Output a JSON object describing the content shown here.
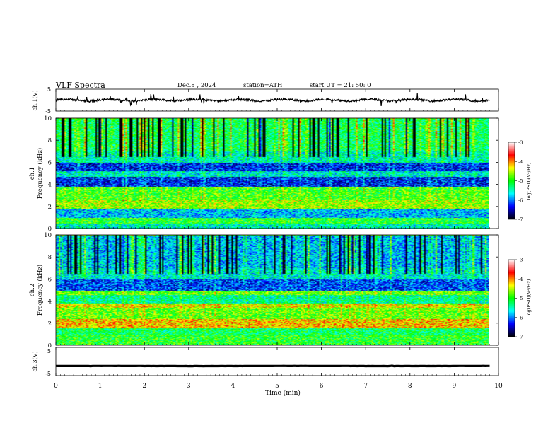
{
  "header": {
    "title": "VLF Spectra",
    "date": "Dec.8 , 2024",
    "station": "station=ATH",
    "start": "start UT = 21: 50: 0"
  },
  "chart_data": [
    {
      "type": "line",
      "name": "ch1-waveform",
      "ylabel": "ch.1(V)",
      "ylim": [
        -5,
        5
      ],
      "y_ticks": [
        "5",
        "-5"
      ],
      "baseline": 0,
      "color": "#000000"
    },
    {
      "type": "heatmap",
      "name": "ch1-spectrogram",
      "ylabel": "ch.1\nFrequency (kHz)",
      "ylabel_lines": [
        "ch.1",
        "Frequency (kHz)"
      ],
      "ylim": [
        0,
        10
      ],
      "y_ticks": [
        "0",
        "2",
        "4",
        "6",
        "8",
        "10"
      ],
      "bands": [
        {
          "from": 0.0,
          "to": 0.5,
          "level": -5.5,
          "note": "black/mixed"
        },
        {
          "from": 0.5,
          "to": 1.0,
          "level": -5.0
        },
        {
          "from": 1.0,
          "to": 1.8,
          "level": -5.8
        },
        {
          "from": 1.8,
          "to": 2.6,
          "level": -4.6
        },
        {
          "from": 2.6,
          "to": 3.8,
          "level": -4.9
        },
        {
          "from": 3.8,
          "to": 4.7,
          "level": -6.3
        },
        {
          "from": 4.7,
          "to": 5.2,
          "level": -5.6
        },
        {
          "from": 5.2,
          "to": 6.0,
          "level": -6.3
        },
        {
          "from": 6.0,
          "to": 7.0,
          "level": -5.5
        },
        {
          "from": 7.0,
          "to": 10.0,
          "level": -5.2
        }
      ],
      "colorbar": {
        "label": "log(PSD)(V²/Hz)",
        "range": [
          -7,
          -3
        ],
        "ticks": [
          "-3",
          "-4",
          "-5",
          "-6",
          "-7"
        ]
      }
    },
    {
      "type": "heatmap",
      "name": "ch2-spectrogram",
      "ylabel": "ch.2\nFrequency (kHz)",
      "ylabel_lines": [
        "ch.2",
        "Frequency (kHz)"
      ],
      "ylim": [
        0,
        10
      ],
      "y_ticks": [
        "0",
        "2",
        "4",
        "6",
        "8",
        "10"
      ],
      "bands": [
        {
          "from": 0.0,
          "to": 1.0,
          "level": -5.0
        },
        {
          "from": 1.0,
          "to": 1.6,
          "level": -5.2
        },
        {
          "from": 1.6,
          "to": 2.4,
          "level": -4.2
        },
        {
          "from": 2.4,
          "to": 3.4,
          "level": -4.8
        },
        {
          "from": 3.4,
          "to": 3.8,
          "level": -4.4
        },
        {
          "from": 3.8,
          "to": 4.6,
          "level": -5.4
        },
        {
          "from": 4.6,
          "to": 5.0,
          "level": -4.8
        },
        {
          "from": 5.0,
          "to": 6.0,
          "level": -6.2
        },
        {
          "from": 6.0,
          "to": 7.0,
          "level": -5.6
        },
        {
          "from": 7.0,
          "to": 10.0,
          "level": -5.8
        }
      ],
      "colorbar": {
        "label": "log(PSD)(V²/Hz)",
        "range": [
          -7,
          -3
        ],
        "ticks": [
          "-3",
          "-4",
          "-5",
          "-6",
          "-7"
        ]
      }
    },
    {
      "type": "line",
      "name": "ch3-waveform",
      "ylabel": "ch.3(V)",
      "ylim": [
        -5,
        5
      ],
      "y_ticks": [
        "5",
        "-5"
      ],
      "baseline": -1.6,
      "color": "#000000"
    }
  ],
  "x_axis": {
    "label": "Time (min)",
    "range": [
      0,
      10
    ],
    "data_end": 9.8,
    "ticks": [
      "0",
      "1",
      "2",
      "3",
      "4",
      "5",
      "6",
      "7",
      "8",
      "9",
      "10"
    ]
  },
  "colorscale": [
    "#000000",
    "#0000ff",
    "#00ffff",
    "#00ff00",
    "#ffff00",
    "#ff0000",
    "#ffffff"
  ]
}
